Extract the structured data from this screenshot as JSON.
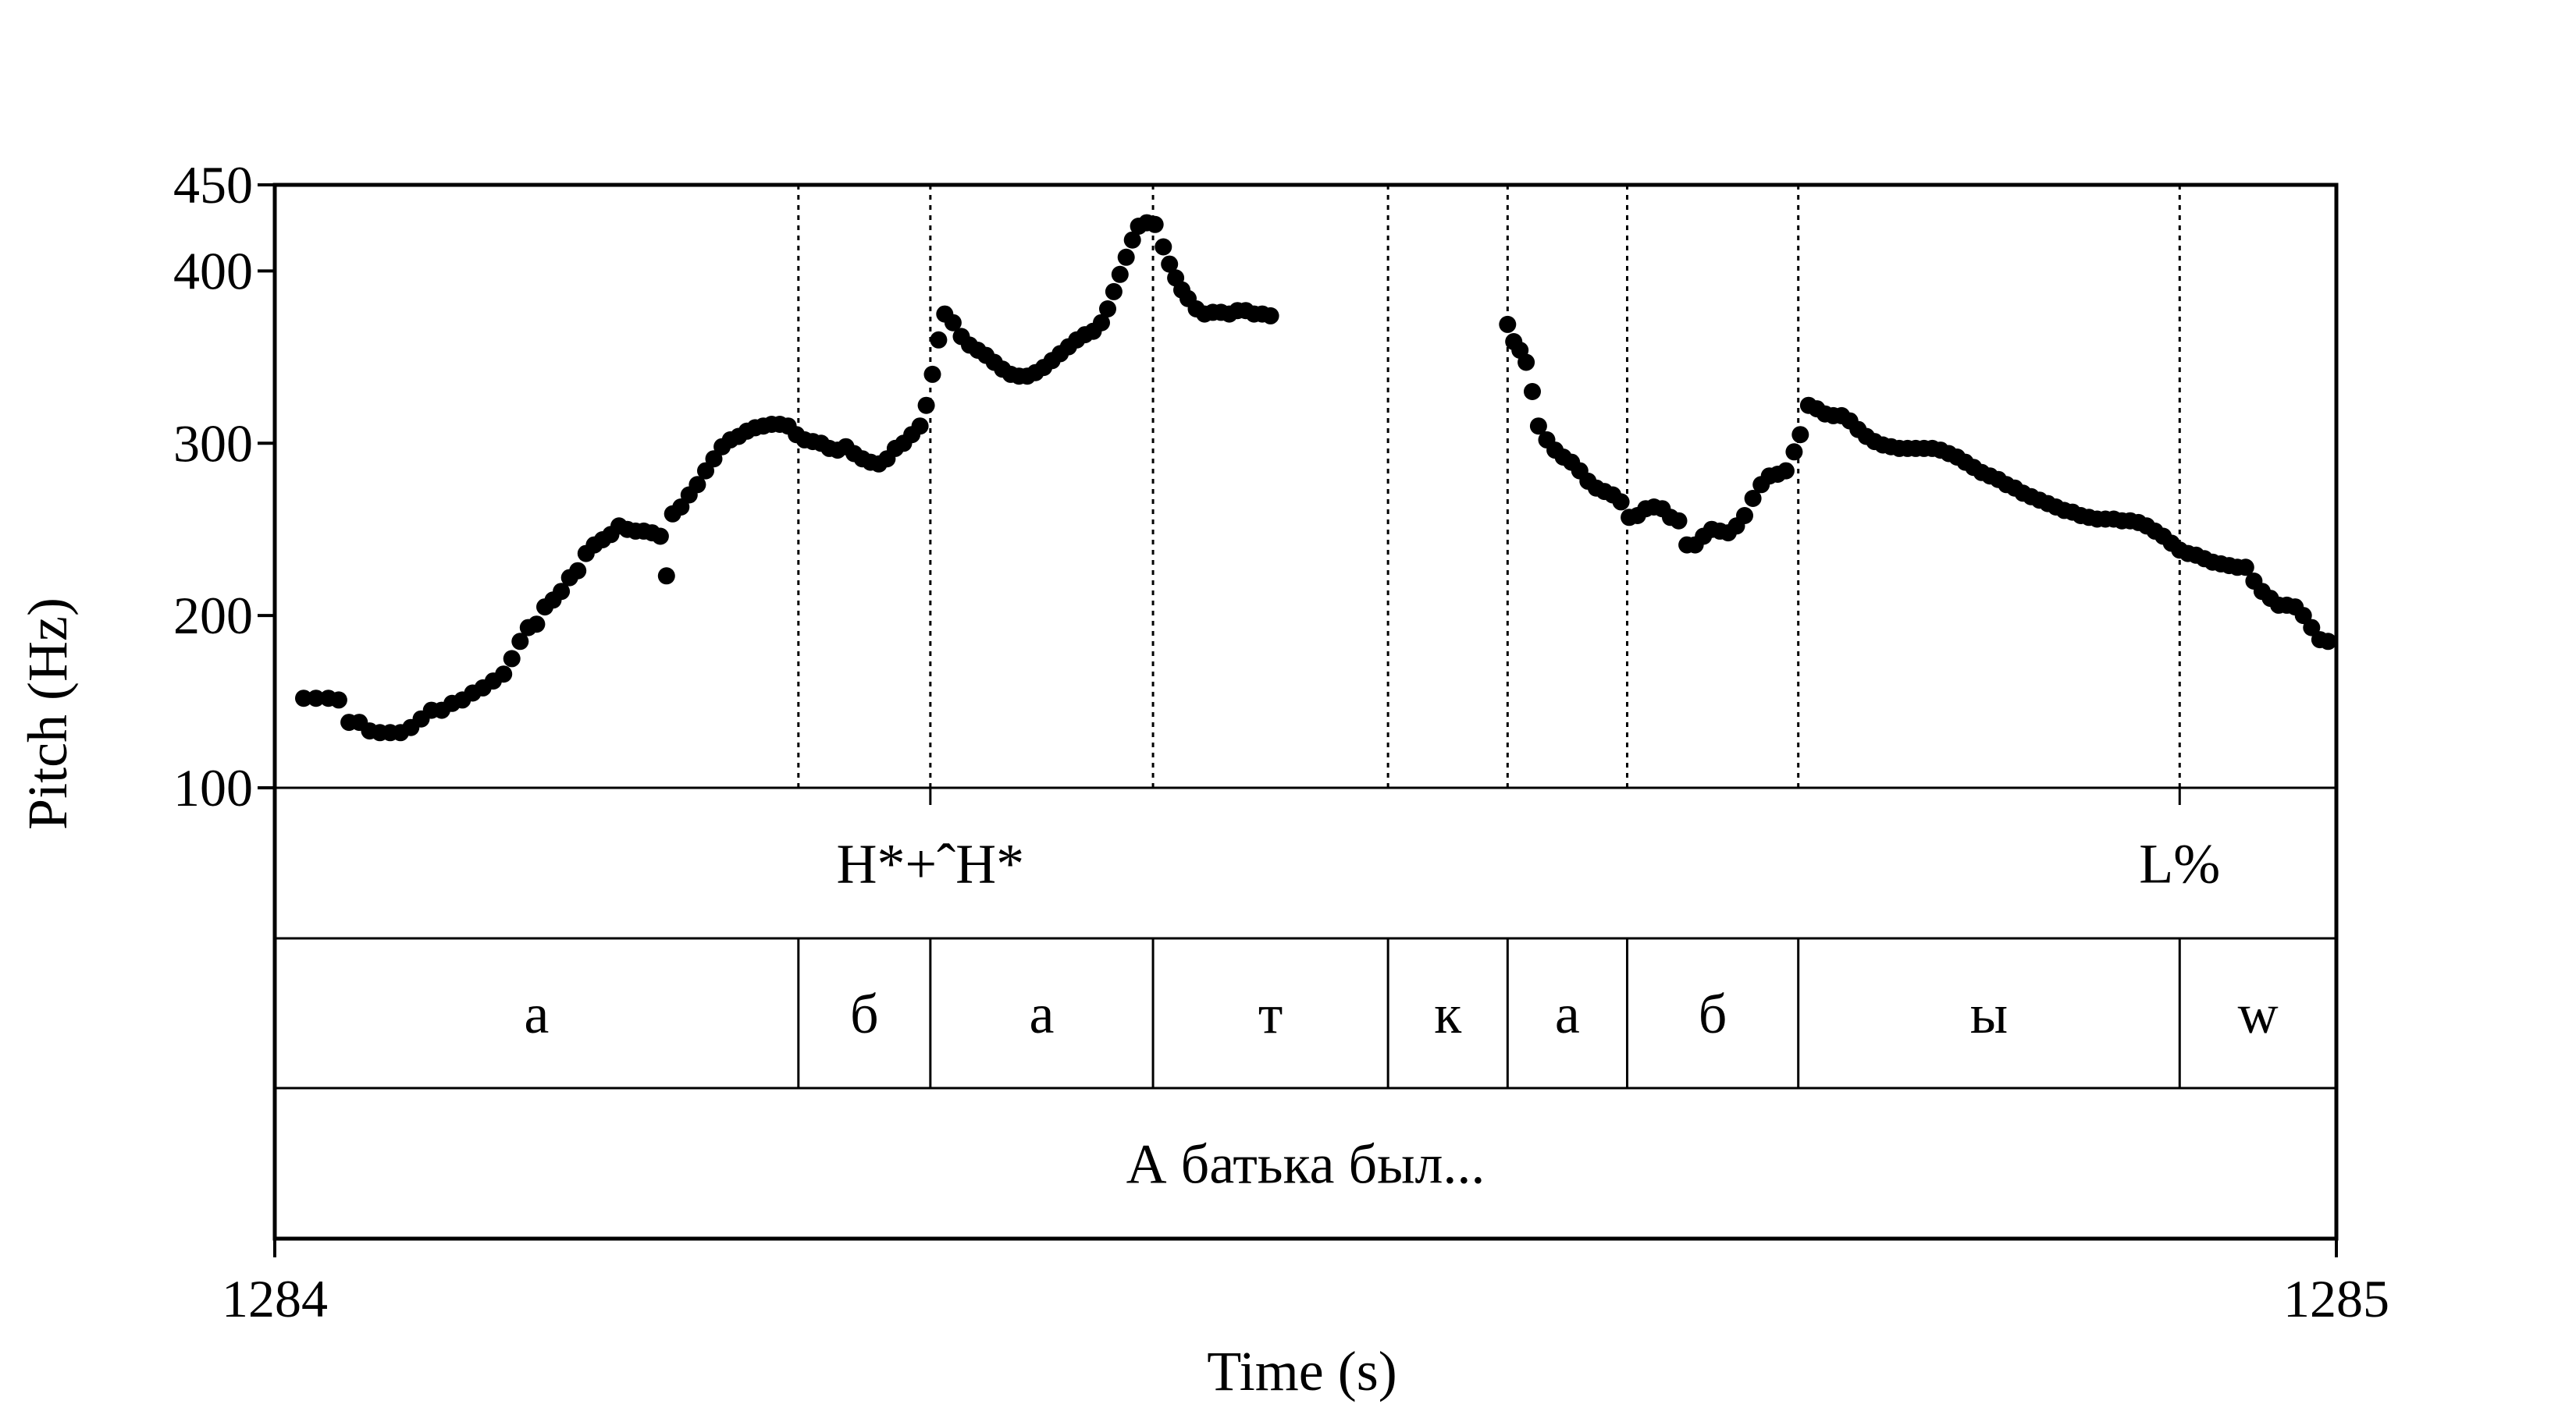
{
  "chart_data": {
    "type": "scatter",
    "xlabel": "Time (s)",
    "ylabel": "Pitch (Hz)",
    "xlim": [
      1284,
      1285
    ],
    "ylim": [
      100,
      450
    ],
    "x_ticks": [
      "1284",
      "1285"
    ],
    "y_ticks": [
      {
        "value": 450,
        "label": "450"
      },
      {
        "value": 400,
        "label": "400"
      },
      {
        "value": 300,
        "label": "300"
      },
      {
        "value": 200,
        "label": "200"
      },
      {
        "value": 100,
        "label": "100"
      }
    ],
    "boundaries": [
      1284.254,
      1284.318,
      1284.426,
      1284.54,
      1284.598,
      1284.656,
      1284.739,
      1284.924
    ],
    "series": [
      {
        "points": [
          [
            1284.014,
            152
          ],
          [
            1284.02,
            152
          ],
          [
            1284.026,
            152
          ],
          [
            1284.031,
            151
          ],
          [
            1284.036,
            138
          ],
          [
            1284.041,
            138
          ],
          [
            1284.046,
            133
          ],
          [
            1284.051,
            132
          ],
          [
            1284.056,
            132
          ],
          [
            1284.061,
            132
          ],
          [
            1284.066,
            135
          ],
          [
            1284.071,
            140
          ],
          [
            1284.076,
            145
          ],
          [
            1284.081,
            145
          ],
          [
            1284.086,
            149
          ],
          [
            1284.091,
            151
          ],
          [
            1284.096,
            155
          ],
          [
            1284.101,
            158
          ],
          [
            1284.106,
            162
          ],
          [
            1284.111,
            166
          ],
          [
            1284.115,
            175
          ],
          [
            1284.119,
            185
          ],
          [
            1284.123,
            193
          ],
          [
            1284.127,
            195
          ],
          [
            1284.131,
            205
          ],
          [
            1284.135,
            209
          ],
          [
            1284.139,
            214
          ],
          [
            1284.143,
            222
          ],
          [
            1284.147,
            226
          ],
          [
            1284.151,
            236
          ],
          [
            1284.155,
            241
          ],
          [
            1284.159,
            244
          ],
          [
            1284.163,
            247
          ],
          [
            1284.167,
            252
          ],
          [
            1284.171,
            250
          ],
          [
            1284.175,
            249
          ],
          [
            1284.179,
            249
          ],
          [
            1284.183,
            248
          ],
          [
            1284.187,
            246
          ],
          [
            1284.19,
            223
          ],
          [
            1284.193,
            259
          ],
          [
            1284.197,
            263
          ],
          [
            1284.201,
            270
          ],
          [
            1284.205,
            276
          ],
          [
            1284.209,
            284
          ],
          [
            1284.213,
            291
          ],
          [
            1284.217,
            298
          ],
          [
            1284.221,
            302
          ],
          [
            1284.225,
            304
          ],
          [
            1284.229,
            307
          ],
          [
            1284.233,
            309
          ],
          [
            1284.237,
            310
          ],
          [
            1284.241,
            311
          ],
          [
            1284.245,
            311
          ],
          [
            1284.249,
            310
          ],
          [
            1284.253,
            305
          ],
          [
            1284.257,
            302
          ],
          [
            1284.261,
            301
          ],
          [
            1284.265,
            300
          ],
          [
            1284.269,
            297
          ],
          [
            1284.273,
            296
          ],
          [
            1284.277,
            298
          ],
          [
            1284.281,
            294
          ],
          [
            1284.285,
            291
          ],
          [
            1284.289,
            289
          ],
          [
            1284.293,
            288
          ],
          [
            1284.297,
            291
          ],
          [
            1284.301,
            297
          ],
          [
            1284.305,
            300
          ],
          [
            1284.309,
            305
          ],
          [
            1284.313,
            310
          ],
          [
            1284.316,
            322
          ],
          [
            1284.319,
            340
          ],
          [
            1284.322,
            360
          ],
          [
            1284.325,
            375
          ],
          [
            1284.329,
            370
          ],
          [
            1284.333,
            362
          ],
          [
            1284.337,
            357
          ],
          [
            1284.341,
            354
          ],
          [
            1284.345,
            351
          ],
          [
            1284.349,
            347
          ],
          [
            1284.353,
            343
          ],
          [
            1284.357,
            340
          ],
          [
            1284.361,
            339
          ],
          [
            1284.365,
            339
          ],
          [
            1284.369,
            341
          ],
          [
            1284.373,
            344
          ],
          [
            1284.377,
            348
          ],
          [
            1284.381,
            352
          ],
          [
            1284.385,
            356
          ],
          [
            1284.389,
            360
          ],
          [
            1284.393,
            363
          ],
          [
            1284.397,
            365
          ],
          [
            1284.401,
            370
          ],
          [
            1284.404,
            378
          ],
          [
            1284.407,
            388
          ],
          [
            1284.41,
            398
          ],
          [
            1284.413,
            408
          ],
          [
            1284.416,
            418
          ],
          [
            1284.419,
            426
          ],
          [
            1284.423,
            428
          ],
          [
            1284.427,
            427
          ],
          [
            1284.431,
            414
          ],
          [
            1284.434,
            404
          ],
          [
            1284.437,
            396
          ],
          [
            1284.44,
            389
          ],
          [
            1284.443,
            384
          ],
          [
            1284.447,
            378
          ],
          [
            1284.451,
            375
          ],
          [
            1284.455,
            376
          ],
          [
            1284.459,
            376
          ],
          [
            1284.463,
            375
          ],
          [
            1284.467,
            377
          ],
          [
            1284.471,
            377
          ],
          [
            1284.475,
            375
          ],
          [
            1284.479,
            375
          ],
          [
            1284.483,
            374
          ],
          [
            1284.598,
            369
          ],
          [
            1284.601,
            359
          ],
          [
            1284.604,
            354
          ],
          [
            1284.607,
            347
          ],
          [
            1284.61,
            330
          ],
          [
            1284.613,
            310
          ],
          [
            1284.617,
            302
          ],
          [
            1284.621,
            296
          ],
          [
            1284.625,
            292
          ],
          [
            1284.629,
            289
          ],
          [
            1284.633,
            284
          ],
          [
            1284.637,
            278
          ],
          [
            1284.641,
            274
          ],
          [
            1284.645,
            272
          ],
          [
            1284.649,
            270
          ],
          [
            1284.653,
            266
          ],
          [
            1284.657,
            257
          ],
          [
            1284.661,
            258
          ],
          [
            1284.665,
            262
          ],
          [
            1284.669,
            263
          ],
          [
            1284.673,
            262
          ],
          [
            1284.677,
            257
          ],
          [
            1284.681,
            255
          ],
          [
            1284.685,
            241
          ],
          [
            1284.689,
            241
          ],
          [
            1284.693,
            246
          ],
          [
            1284.697,
            250
          ],
          [
            1284.701,
            249
          ],
          [
            1284.705,
            248
          ],
          [
            1284.709,
            252
          ],
          [
            1284.713,
            258
          ],
          [
            1284.717,
            268
          ],
          [
            1284.721,
            276
          ],
          [
            1284.725,
            281
          ],
          [
            1284.729,
            282
          ],
          [
            1284.733,
            284
          ],
          [
            1284.737,
            295
          ],
          [
            1284.74,
            305
          ],
          [
            1284.744,
            322
          ],
          [
            1284.748,
            320
          ],
          [
            1284.752,
            317
          ],
          [
            1284.756,
            316
          ],
          [
            1284.76,
            316
          ],
          [
            1284.764,
            313
          ],
          [
            1284.768,
            308
          ],
          [
            1284.772,
            304
          ],
          [
            1284.776,
            301
          ],
          [
            1284.78,
            299
          ],
          [
            1284.784,
            298
          ],
          [
            1284.788,
            297
          ],
          [
            1284.792,
            297
          ],
          [
            1284.796,
            297
          ],
          [
            1284.8,
            297
          ],
          [
            1284.804,
            297
          ],
          [
            1284.808,
            296
          ],
          [
            1284.812,
            294
          ],
          [
            1284.816,
            292
          ],
          [
            1284.82,
            289
          ],
          [
            1284.824,
            286
          ],
          [
            1284.828,
            283
          ],
          [
            1284.832,
            281
          ],
          [
            1284.836,
            279
          ],
          [
            1284.84,
            276
          ],
          [
            1284.844,
            274
          ],
          [
            1284.848,
            271
          ],
          [
            1284.852,
            269
          ],
          [
            1284.856,
            267
          ],
          [
            1284.86,
            265
          ],
          [
            1284.864,
            263
          ],
          [
            1284.868,
            261
          ],
          [
            1284.872,
            260
          ],
          [
            1284.876,
            258
          ],
          [
            1284.88,
            257
          ],
          [
            1284.884,
            256
          ],
          [
            1284.888,
            256
          ],
          [
            1284.892,
            256
          ],
          [
            1284.896,
            255
          ],
          [
            1284.9,
            255
          ],
          [
            1284.904,
            254
          ],
          [
            1284.908,
            252
          ],
          [
            1284.912,
            249
          ],
          [
            1284.916,
            246
          ],
          [
            1284.92,
            242
          ],
          [
            1284.924,
            238
          ],
          [
            1284.928,
            236
          ],
          [
            1284.932,
            235
          ],
          [
            1284.936,
            233
          ],
          [
            1284.94,
            231
          ],
          [
            1284.944,
            230
          ],
          [
            1284.948,
            229
          ],
          [
            1284.952,
            228
          ],
          [
            1284.956,
            228
          ],
          [
            1284.96,
            220
          ],
          [
            1284.964,
            214
          ],
          [
            1284.968,
            210
          ],
          [
            1284.972,
            206
          ],
          [
            1284.976,
            206
          ],
          [
            1284.98,
            205
          ],
          [
            1284.984,
            200
          ],
          [
            1284.988,
            193
          ],
          [
            1284.992,
            186
          ],
          [
            1284.996,
            185
          ]
        ]
      }
    ],
    "tiers": [
      {
        "name": "tones",
        "labels": [
          {
            "text": "H*+ˆH*",
            "x": 1284.318
          },
          {
            "text": "L%",
            "x": 1284.924
          }
        ]
      },
      {
        "name": "segments",
        "intervals": [
          {
            "text": "a",
            "start": 1284,
            "end": 1284.254
          },
          {
            "text": "б",
            "start": 1284.254,
            "end": 1284.318
          },
          {
            "text": "a",
            "start": 1284.318,
            "end": 1284.426
          },
          {
            "text": "т",
            "start": 1284.426,
            "end": 1284.54
          },
          {
            "text": "к",
            "start": 1284.54,
            "end": 1284.598
          },
          {
            "text": "a",
            "start": 1284.598,
            "end": 1284.656
          },
          {
            "text": "б",
            "start": 1284.656,
            "end": 1284.739
          },
          {
            "text": "ы",
            "start": 1284.739,
            "end": 1284.924
          },
          {
            "text": "w",
            "start": 1284.924,
            "end": 1285
          }
        ]
      },
      {
        "name": "words",
        "intervals": [
          {
            "text": "А батька был...",
            "start": 1284,
            "end": 1285
          }
        ]
      }
    ]
  }
}
